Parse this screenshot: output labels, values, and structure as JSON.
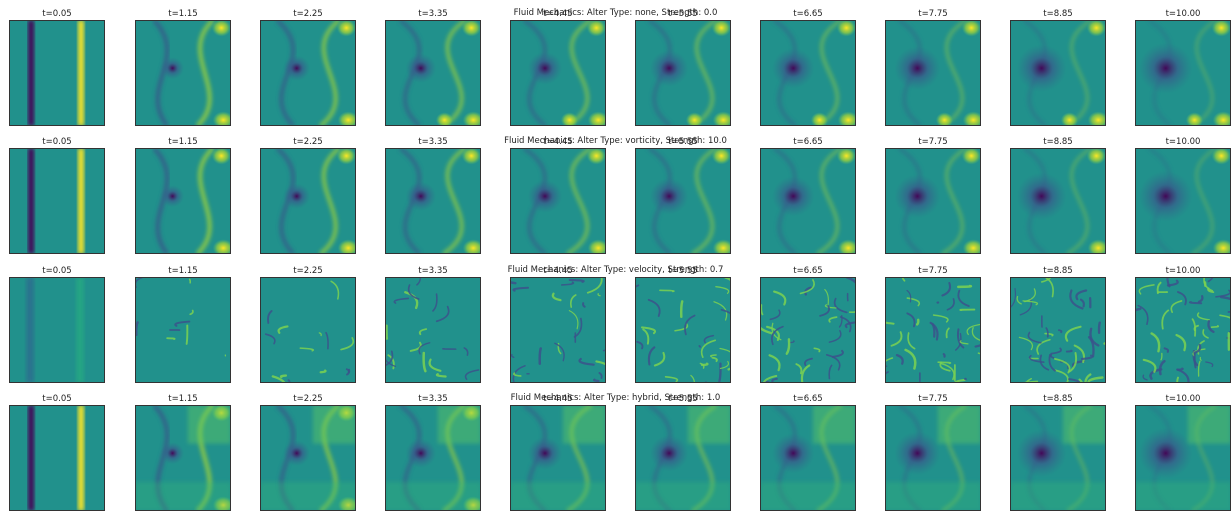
{
  "chart_data": {
    "type": "heatmap",
    "colormap": "viridis",
    "colors": {
      "low": "#440154",
      "mid": "#21918c",
      "high": "#fde725",
      "background": "#ffffff"
    },
    "rows": [
      {
        "title": "Fluid Mechanics: Alter Type: none, Strength: 0.0",
        "alter_type": "none",
        "strength": 0.0,
        "frames": [
          "t=0.05",
          "t=1.15",
          "t=2.25",
          "t=3.35",
          "t=4.45",
          "t=5.55",
          "t=6.65",
          "t=7.75",
          "t=8.85",
          "t=10.00"
        ]
      },
      {
        "title": "Fluid Mechanics: Alter Type: vorticity, Strength: 10.0",
        "alter_type": "vorticity",
        "strength": 10.0,
        "frames": [
          "t=0.05",
          "t=1.15",
          "t=2.25",
          "t=3.35",
          "t=4.45",
          "t=5.55",
          "t=6.65",
          "t=7.75",
          "t=8.85",
          "t=10.00"
        ]
      },
      {
        "title": "Fluid Mechanics: Alter Type: velocity, Strength: 0.7",
        "alter_type": "velocity",
        "strength": 0.7,
        "frames": [
          "t=0.05",
          "t=1.15",
          "t=2.25",
          "t=3.35",
          "t=4.45",
          "t=5.55",
          "t=6.65",
          "t=7.75",
          "t=8.85",
          "t=10.00"
        ]
      },
      {
        "title": "Fluid Mechanics: Alter Type: hybrid, Strength: 1.0",
        "alter_type": "hybrid",
        "strength": 1.0,
        "frames": [
          "t=0.05",
          "t=1.15",
          "t=2.25",
          "t=3.35",
          "t=4.45",
          "t=5.55",
          "t=6.65",
          "t=7.75",
          "t=8.85",
          "t=10.00"
        ]
      }
    ],
    "times": [
      0.05,
      1.15,
      2.25,
      3.35,
      4.45,
      5.55,
      6.65,
      7.75,
      8.85,
      10.0
    ],
    "grid": false,
    "axes_ticks": false
  }
}
